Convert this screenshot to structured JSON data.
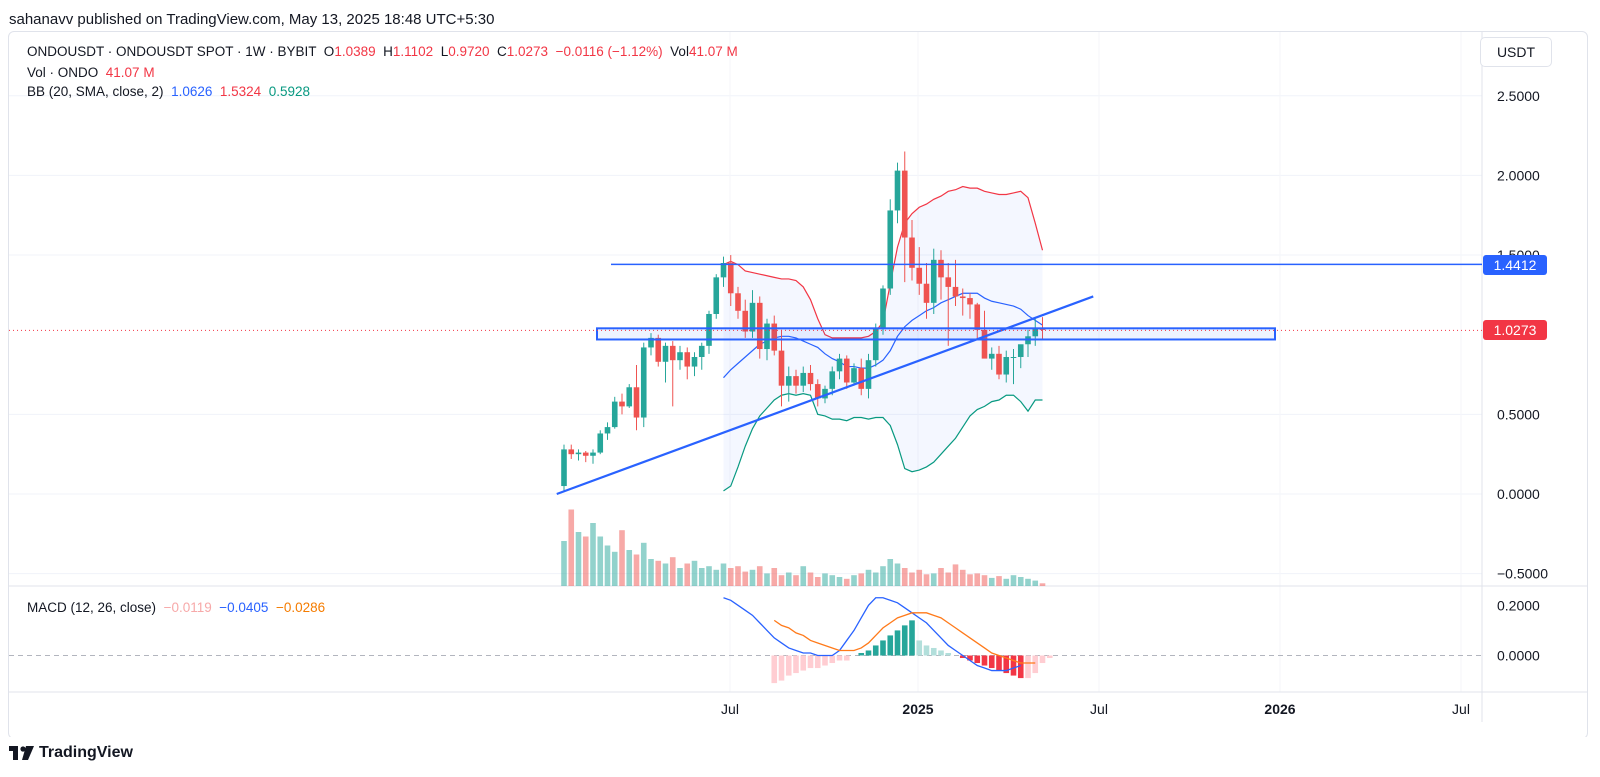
{
  "publish_line": "sahanavv published on TradingView.com, May 13, 2025 18:48 UTC+5:30",
  "legend": {
    "symbol": "ONDOUSDT · ONDOUSDT SPOT · 1W · BYBIT",
    "o_label": "O",
    "o_value": "1.0389",
    "h_label": "H",
    "h_value": "1.1102",
    "l_label": "L",
    "l_value": "0.9720",
    "c_label": "C",
    "c_value": "1.0273",
    "change": "−0.0116 (−1.12%)",
    "vol_label": "Vol",
    "vol_value": "41.07 M",
    "vol_line_label": "Vol · ONDO",
    "vol_line_value": "41.07 M",
    "bb_label": "BB (20, SMA, close, 2)",
    "bb_basis": "1.0626",
    "bb_upper": "1.5324",
    "bb_lower": "0.5928",
    "macd_label": "MACD (12, 26, close)",
    "macd_hist": "−0.0119",
    "macd_line": "−0.0405",
    "macd_signal": "−0.0286"
  },
  "currency": "USDT",
  "price_axis": {
    "ticks": [
      "2.5000",
      "2.0000",
      "1.5000",
      "0.5000",
      "0.0000",
      "−0.5000"
    ]
  },
  "macd_axis": {
    "ticks": [
      "0.2000",
      "0.0000"
    ]
  },
  "time_axis": {
    "ticks": [
      {
        "label": "Jul",
        "bold": false
      },
      {
        "label": "2025",
        "bold": true
      },
      {
        "label": "Jul",
        "bold": false
      },
      {
        "label": "2026",
        "bold": true
      },
      {
        "label": "Jul",
        "bold": false
      }
    ]
  },
  "price_tags": {
    "resistance": "1.4412",
    "last": "1.0273"
  },
  "footer": {
    "brand": "TradingView"
  },
  "colors": {
    "up": "#26a69a",
    "down": "#ef5350",
    "blue": "#2962ff",
    "bb_upper": "#f23645",
    "bb_lower": "#089981",
    "bb_basis": "#2962ff",
    "macd_signal": "#ff7a1a"
  },
  "chart_data": {
    "type": "candlestick",
    "interval": "1W",
    "y_range": [
      -0.55,
      2.7
    ],
    "candles": [
      [
        0.05,
        0.31,
        0.02,
        0.28
      ],
      [
        0.28,
        0.31,
        0.22,
        0.25
      ],
      [
        0.25,
        0.28,
        0.21,
        0.26
      ],
      [
        0.26,
        0.27,
        0.2,
        0.24
      ],
      [
        0.24,
        0.28,
        0.19,
        0.26
      ],
      [
        0.26,
        0.4,
        0.25,
        0.38
      ],
      [
        0.38,
        0.45,
        0.34,
        0.42
      ],
      [
        0.42,
        0.61,
        0.41,
        0.58
      ],
      [
        0.58,
        0.63,
        0.5,
        0.55
      ],
      [
        0.55,
        0.69,
        0.54,
        0.67
      ],
      [
        0.67,
        0.81,
        0.4,
        0.48
      ],
      [
        0.48,
        0.95,
        0.42,
        0.92
      ],
      [
        0.92,
        1.01,
        0.87,
        0.98
      ],
      [
        0.98,
        1.0,
        0.8,
        0.83
      ],
      [
        0.83,
        0.95,
        0.7,
        0.93
      ],
      [
        0.93,
        0.96,
        0.55,
        0.84
      ],
      [
        0.84,
        0.93,
        0.78,
        0.89
      ],
      [
        0.89,
        0.92,
        0.72,
        0.8
      ],
      [
        0.8,
        0.89,
        0.74,
        0.86
      ],
      [
        0.86,
        0.95,
        0.78,
        0.93
      ],
      [
        0.93,
        1.15,
        0.88,
        1.13
      ],
      [
        1.13,
        1.38,
        1.1,
        1.36
      ],
      [
        1.36,
        1.49,
        1.3,
        1.45
      ],
      [
        1.45,
        1.5,
        1.18,
        1.26
      ],
      [
        1.26,
        1.3,
        1.1,
        1.15
      ],
      [
        1.15,
        1.22,
        0.98,
        1.02
      ],
      [
        1.02,
        1.28,
        0.98,
        1.2
      ],
      [
        1.2,
        1.24,
        0.85,
        0.91
      ],
      [
        0.91,
        1.1,
        0.84,
        1.07
      ],
      [
        1.07,
        1.12,
        0.87,
        0.9
      ],
      [
        0.9,
        1.03,
        0.55,
        0.68
      ],
      [
        0.68,
        0.8,
        0.58,
        0.74
      ],
      [
        0.74,
        0.78,
        0.63,
        0.68
      ],
      [
        0.68,
        0.8,
        0.64,
        0.76
      ],
      [
        0.76,
        0.81,
        0.65,
        0.69
      ],
      [
        0.69,
        0.72,
        0.55,
        0.6
      ],
      [
        0.6,
        0.68,
        0.57,
        0.66
      ],
      [
        0.66,
        0.8,
        0.62,
        0.77
      ],
      [
        0.77,
        0.88,
        0.72,
        0.85
      ],
      [
        0.85,
        0.87,
        0.66,
        0.7
      ],
      [
        0.7,
        0.82,
        0.68,
        0.79
      ],
      [
        0.79,
        0.85,
        0.62,
        0.66
      ],
      [
        0.66,
        0.88,
        0.6,
        0.84
      ],
      [
        0.84,
        1.07,
        0.8,
        1.04
      ],
      [
        1.04,
        1.31,
        1.0,
        1.29
      ],
      [
        1.29,
        1.85,
        1.25,
        1.78
      ],
      [
        1.78,
        2.08,
        1.7,
        2.03
      ],
      [
        2.03,
        2.15,
        1.33,
        1.61
      ],
      [
        1.61,
        1.72,
        1.34,
        1.42
      ],
      [
        1.42,
        1.55,
        1.25,
        1.32
      ],
      [
        1.32,
        1.45,
        1.1,
        1.2
      ],
      [
        1.2,
        1.54,
        1.13,
        1.47
      ],
      [
        1.47,
        1.53,
        1.22,
        1.36
      ],
      [
        1.36,
        1.45,
        0.93,
        1.3
      ],
      [
        1.3,
        1.47,
        1.18,
        1.24
      ],
      [
        1.24,
        1.29,
        1.12,
        1.23
      ],
      [
        1.23,
        1.26,
        1.1,
        1.19
      ],
      [
        1.19,
        1.2,
        0.97,
        1.03
      ],
      [
        1.03,
        1.15,
        0.87,
        0.85
      ],
      [
        0.85,
        0.92,
        0.78,
        0.88
      ],
      [
        0.88,
        0.93,
        0.72,
        0.75
      ],
      [
        0.75,
        0.9,
        0.7,
        0.86
      ],
      [
        0.86,
        0.91,
        0.69,
        0.86
      ],
      [
        0.86,
        0.92,
        0.79,
        0.94
      ],
      [
        0.94,
        1.03,
        0.86,
        0.99
      ],
      [
        0.99,
        1.11,
        0.93,
        1.04
      ],
      [
        1.04,
        1.11,
        0.97,
        1.03
      ]
    ],
    "volume": [
      0.5,
      0.85,
      0.6,
      0.55,
      0.7,
      0.55,
      0.45,
      0.38,
      0.62,
      0.4,
      0.35,
      0.48,
      0.3,
      0.28,
      0.25,
      0.32,
      0.2,
      0.25,
      0.28,
      0.2,
      0.22,
      0.18,
      0.25,
      0.2,
      0.22,
      0.16,
      0.18,
      0.22,
      0.14,
      0.2,
      0.12,
      0.15,
      0.12,
      0.22,
      0.15,
      0.1,
      0.14,
      0.12,
      0.1,
      0.08,
      0.12,
      0.14,
      0.18,
      0.15,
      0.22,
      0.3,
      0.25,
      0.2,
      0.15,
      0.18,
      0.13,
      0.14,
      0.2,
      0.15,
      0.24,
      0.18,
      0.13,
      0.14,
      0.12,
      0.09,
      0.11,
      0.08,
      0.12,
      0.1,
      0.08,
      0.06,
      0.03
    ],
    "bb_upper": [
      null,
      null,
      null,
      null,
      null,
      null,
      null,
      null,
      null,
      null,
      null,
      null,
      null,
      null,
      null,
      null,
      null,
      null,
      null,
      null,
      null,
      null,
      1.44,
      1.46,
      1.44,
      1.4,
      1.39,
      1.38,
      1.37,
      1.36,
      1.35,
      1.35,
      1.34,
      1.3,
      1.22,
      1.1,
      1.0,
      0.98,
      0.98,
      0.98,
      0.98,
      0.98,
      0.99,
      1.02,
      1.08,
      1.32,
      1.55,
      1.7,
      1.76,
      1.8,
      1.82,
      1.85,
      1.87,
      1.9,
      1.91,
      1.93,
      1.92,
      1.92,
      1.9,
      1.89,
      1.88,
      1.88,
      1.89,
      1.9,
      1.86,
      1.7,
      1.53
    ],
    "bb_basis": [
      null,
      null,
      null,
      null,
      null,
      null,
      null,
      null,
      null,
      null,
      null,
      null,
      null,
      null,
      null,
      null,
      null,
      null,
      null,
      null,
      null,
      null,
      0.73,
      0.78,
      0.82,
      0.86,
      0.9,
      0.94,
      0.96,
      0.98,
      0.99,
      0.99,
      0.98,
      0.96,
      0.94,
      0.92,
      0.88,
      0.85,
      0.83,
      0.8,
      0.8,
      0.79,
      0.79,
      0.81,
      0.84,
      0.9,
      0.99,
      1.05,
      1.09,
      1.12,
      1.15,
      1.17,
      1.2,
      1.22,
      1.24,
      1.26,
      1.26,
      1.26,
      1.23,
      1.21,
      1.2,
      1.19,
      1.18,
      1.16,
      1.12,
      1.09,
      1.06
    ],
    "bb_lower": [
      null,
      null,
      null,
      null,
      null,
      null,
      null,
      null,
      null,
      null,
      null,
      null,
      null,
      null,
      null,
      null,
      null,
      null,
      null,
      null,
      null,
      null,
      0.02,
      0.05,
      0.17,
      0.3,
      0.41,
      0.49,
      0.54,
      0.59,
      0.62,
      0.63,
      0.62,
      0.63,
      0.62,
      0.5,
      0.49,
      0.47,
      0.47,
      0.46,
      0.48,
      0.48,
      0.47,
      0.48,
      0.48,
      0.43,
      0.31,
      0.16,
      0.14,
      0.15,
      0.17,
      0.2,
      0.25,
      0.3,
      0.35,
      0.42,
      0.49,
      0.53,
      0.55,
      0.58,
      0.59,
      0.62,
      0.62,
      0.58,
      0.52,
      0.59,
      0.59
    ],
    "resistance": 1.4412,
    "support_zone": [
      0.97,
      1.04
    ],
    "trendline": [
      [
        -1,
        0.0
      ],
      [
        73,
        1.24
      ]
    ],
    "macd": {
      "y_range": [
        -0.12,
        0.26
      ],
      "line": [
        null,
        null,
        null,
        null,
        null,
        null,
        null,
        null,
        null,
        null,
        null,
        null,
        null,
        null,
        null,
        null,
        null,
        null,
        null,
        null,
        null,
        null,
        0.23,
        0.22,
        0.2,
        0.18,
        0.16,
        0.13,
        0.1,
        0.07,
        0.05,
        0.03,
        0.02,
        0.01,
        0.01,
        0.0,
        0.0,
        0.0,
        0.02,
        0.06,
        0.1,
        0.15,
        0.2,
        0.23,
        0.23,
        0.22,
        0.21,
        0.19,
        0.17,
        0.15,
        0.13,
        0.1,
        0.07,
        0.04,
        0.02,
        0.0,
        -0.02,
        -0.04,
        -0.05,
        -0.06,
        -0.06,
        -0.06,
        -0.05,
        -0.04
      ],
      "signal": [
        null,
        null,
        null,
        null,
        null,
        null,
        null,
        null,
        null,
        null,
        null,
        null,
        null,
        null,
        null,
        null,
        null,
        null,
        null,
        null,
        null,
        null,
        null,
        null,
        null,
        null,
        null,
        null,
        null,
        0.14,
        0.12,
        0.11,
        0.09,
        0.08,
        0.06,
        0.05,
        0.04,
        0.03,
        0.02,
        0.02,
        0.02,
        0.03,
        0.05,
        0.08,
        0.11,
        0.13,
        0.15,
        0.16,
        0.17,
        0.17,
        0.17,
        0.16,
        0.15,
        0.13,
        0.11,
        0.09,
        0.07,
        0.05,
        0.03,
        0.01,
        0.0,
        -0.01,
        -0.02,
        -0.03,
        -0.03,
        -0.03
      ],
      "hist": [
        null,
        null,
        null,
        null,
        null,
        null,
        null,
        null,
        null,
        null,
        null,
        null,
        null,
        null,
        null,
        null,
        null,
        null,
        null,
        null,
        null,
        null,
        null,
        null,
        null,
        null,
        null,
        null,
        null,
        -0.11,
        -0.1,
        -0.08,
        -0.07,
        -0.06,
        -0.05,
        -0.05,
        -0.04,
        -0.03,
        -0.02,
        -0.02,
        0.0,
        0.01,
        0.02,
        0.04,
        0.06,
        0.08,
        0.1,
        0.12,
        0.14,
        0.06,
        0.04,
        0.03,
        0.02,
        0.01,
        0.0,
        -0.01,
        -0.02,
        -0.03,
        -0.04,
        -0.05,
        -0.06,
        -0.07,
        -0.08,
        -0.09,
        -0.09,
        -0.07,
        -0.03,
        -0.01
      ]
    }
  }
}
